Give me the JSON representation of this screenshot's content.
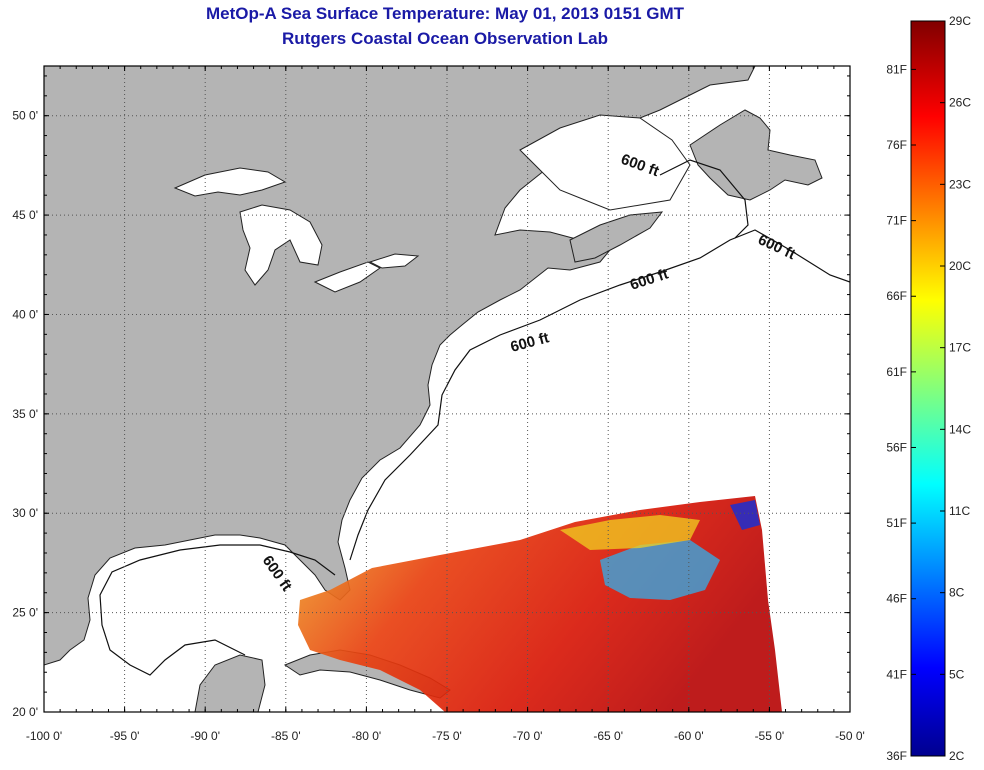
{
  "title": {
    "line1": "MetOp-A Sea Surface Temperature:  May 01, 2013 0151 GMT",
    "line2": "Rutgers Coastal Ocean Observation Lab"
  },
  "map": {
    "lon_ticks": [
      "-100 0'",
      "-95 0'",
      "-90 0'",
      "-85 0'",
      "-80 0'",
      "-75 0'",
      "-70 0'",
      "-65 0'",
      "-60 0'",
      "-55 0'",
      "-50 0'"
    ],
    "lat_ticks": [
      "20 0'",
      "25 0'",
      "30 0'",
      "35 0'",
      "40 0'",
      "45 0'",
      "50 0'"
    ],
    "lon_range": [
      -100,
      -50
    ],
    "lat_range": [
      20,
      52.5
    ],
    "contour_labels": [
      "600 ft",
      "600 ft",
      "600 ft",
      "600 ft",
      "600 ft"
    ],
    "land_color": "#b4b4b4",
    "ocean_color": "#ffffff"
  },
  "colorbar": {
    "celsius": [
      "29C",
      "26C",
      "23C",
      "20C",
      "17C",
      "14C",
      "11C",
      "8C",
      "5C",
      "2C"
    ],
    "fahrenheit": [
      "81F",
      "76F",
      "71F",
      "66F",
      "61F",
      "56F",
      "51F",
      "46F",
      "41F",
      "36F"
    ],
    "min_c": 2,
    "max_c": 29
  }
}
